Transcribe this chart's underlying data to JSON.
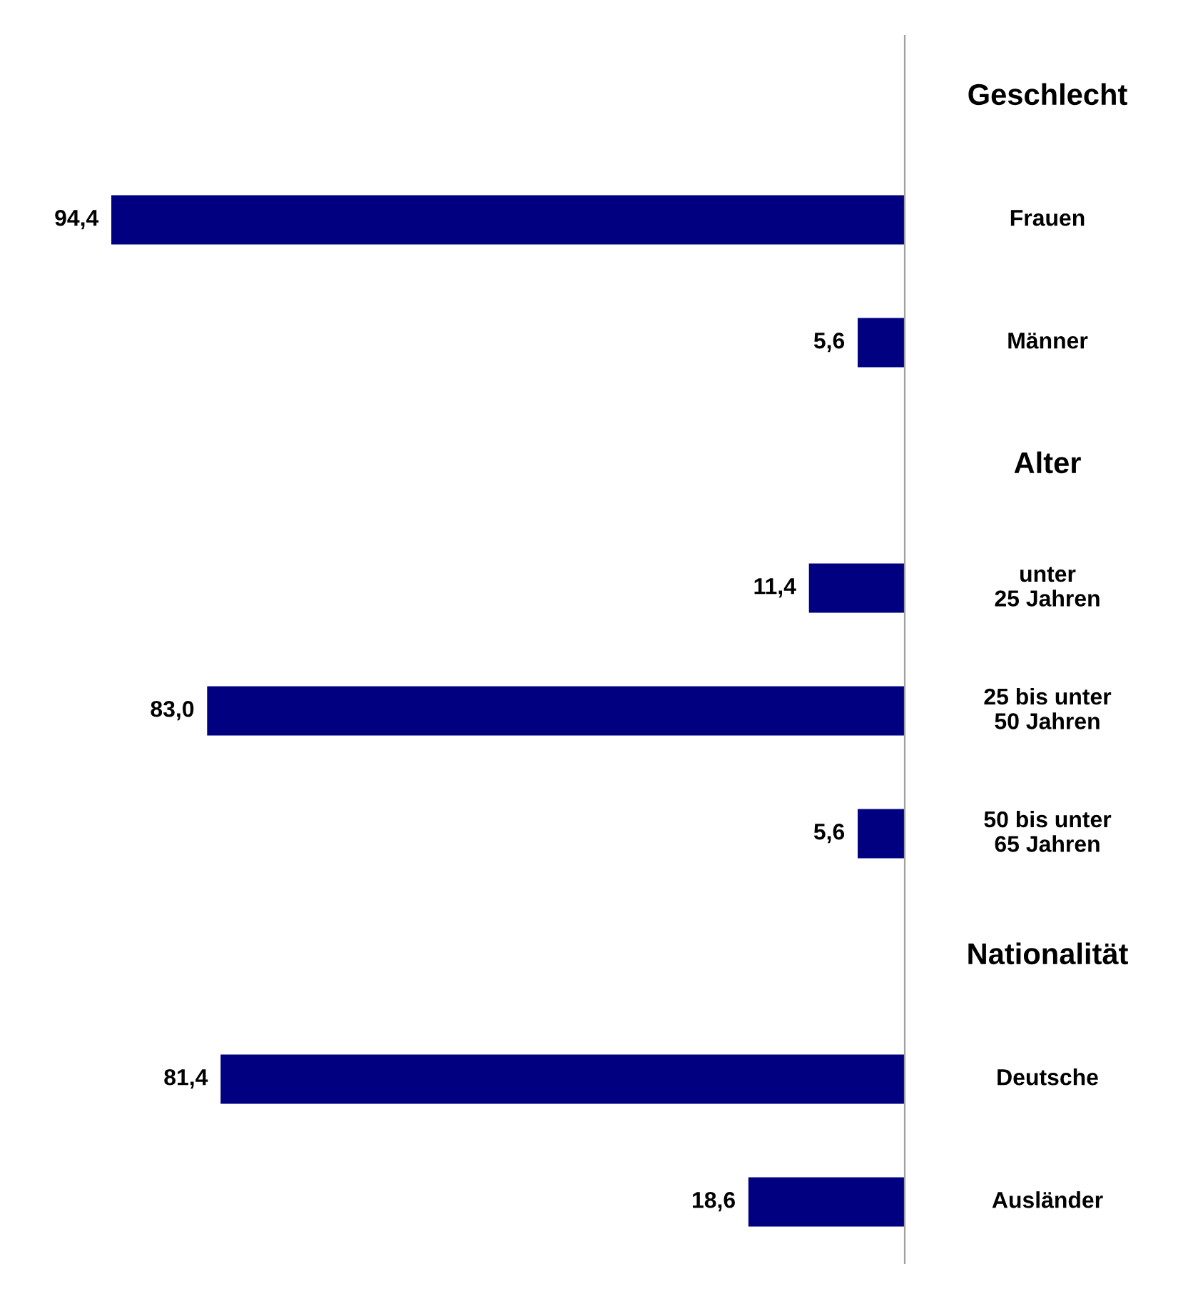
{
  "chart_data": {
    "type": "bar",
    "orientation": "horizontal",
    "categories": [
      "Geschlecht",
      "Frauen",
      "Männer",
      "Alter",
      "unter\n25 Jahren",
      "25 bis unter\n50 Jahren",
      "50 bis unter\n65 Jahren",
      "Nationalität",
      "Deutsche",
      "Ausländer"
    ],
    "values": [
      null,
      94.4,
      5.6,
      null,
      11.4,
      83.0,
      5.6,
      null,
      81.4,
      18.6
    ],
    "value_labels": [
      null,
      "94,4",
      "5,6",
      null,
      "11,4",
      "83,0",
      "5,6",
      null,
      "81,4",
      "18,6"
    ],
    "color": "#000080",
    "legend": false
  }
}
